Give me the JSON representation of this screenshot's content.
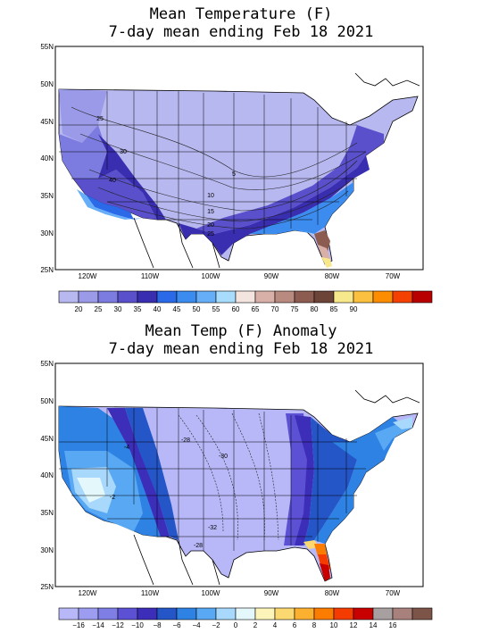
{
  "maps": [
    {
      "title_line1": "Mean Temperature (F)",
      "title_line2": "7-day mean ending Feb 18 2021",
      "lat_labels": [
        "55N",
        "50N",
        "45N",
        "40N",
        "35N",
        "30N",
        "25N"
      ],
      "lon_labels": [
        "120W",
        "110W",
        "100W",
        "90W",
        "80W",
        "70W"
      ],
      "contour_labels": [
        "25",
        "30",
        "40",
        "5",
        "10",
        "15",
        "20",
        "25"
      ],
      "legend": {
        "colors": [
          "#b8b8f0",
          "#9a9ae8",
          "#7c7ce0",
          "#5a50cc",
          "#3a2eb0",
          "#2a6ae8",
          "#3c8cf0",
          "#66aef8",
          "#a8dcfc",
          "#f4e4e0",
          "#d8b0a8",
          "#b88a80",
          "#8c5c50",
          "#6c4438",
          "#f8e88c",
          "#fcc040",
          "#fc8c00",
          "#f44000",
          "#b80000"
        ],
        "labels": [
          "20",
          "25",
          "30",
          "35",
          "40",
          "45",
          "50",
          "55",
          "60",
          "65",
          "70",
          "75",
          "80",
          "85",
          "90"
        ]
      }
    },
    {
      "title_line1": "Mean Temp (F) Anomaly",
      "title_line2": "7-day mean ending Feb 18 2021",
      "lat_labels": [
        "55N",
        "50N",
        "45N",
        "40N",
        "35N",
        "30N",
        "25N"
      ],
      "lon_labels": [
        "120W",
        "110W",
        "100W",
        "90W",
        "80W",
        "70W"
      ],
      "contour_labels": [
        "-28",
        "-4",
        "-30",
        "-2",
        "-32",
        "-28"
      ],
      "legend": {
        "colors": [
          "#b8b8f8",
          "#9c9cf0",
          "#7e7ee4",
          "#5c50d4",
          "#3c2eb8",
          "#2456c8",
          "#2e82e4",
          "#58a8f4",
          "#a8d8fc",
          "#e4f8fc",
          "#fcf4b8",
          "#fcd870",
          "#fcb030",
          "#fc7c00",
          "#f43c00",
          "#c80000",
          "#a8a0a0",
          "#a8807c",
          "#7c5448"
        ],
        "labels": [
          "−16",
          "−14",
          "−12",
          "−10",
          "−8",
          "−6",
          "−4",
          "−2",
          "0",
          "2",
          "4",
          "6",
          "8",
          "10",
          "12",
          "14",
          "16"
        ]
      }
    }
  ]
}
